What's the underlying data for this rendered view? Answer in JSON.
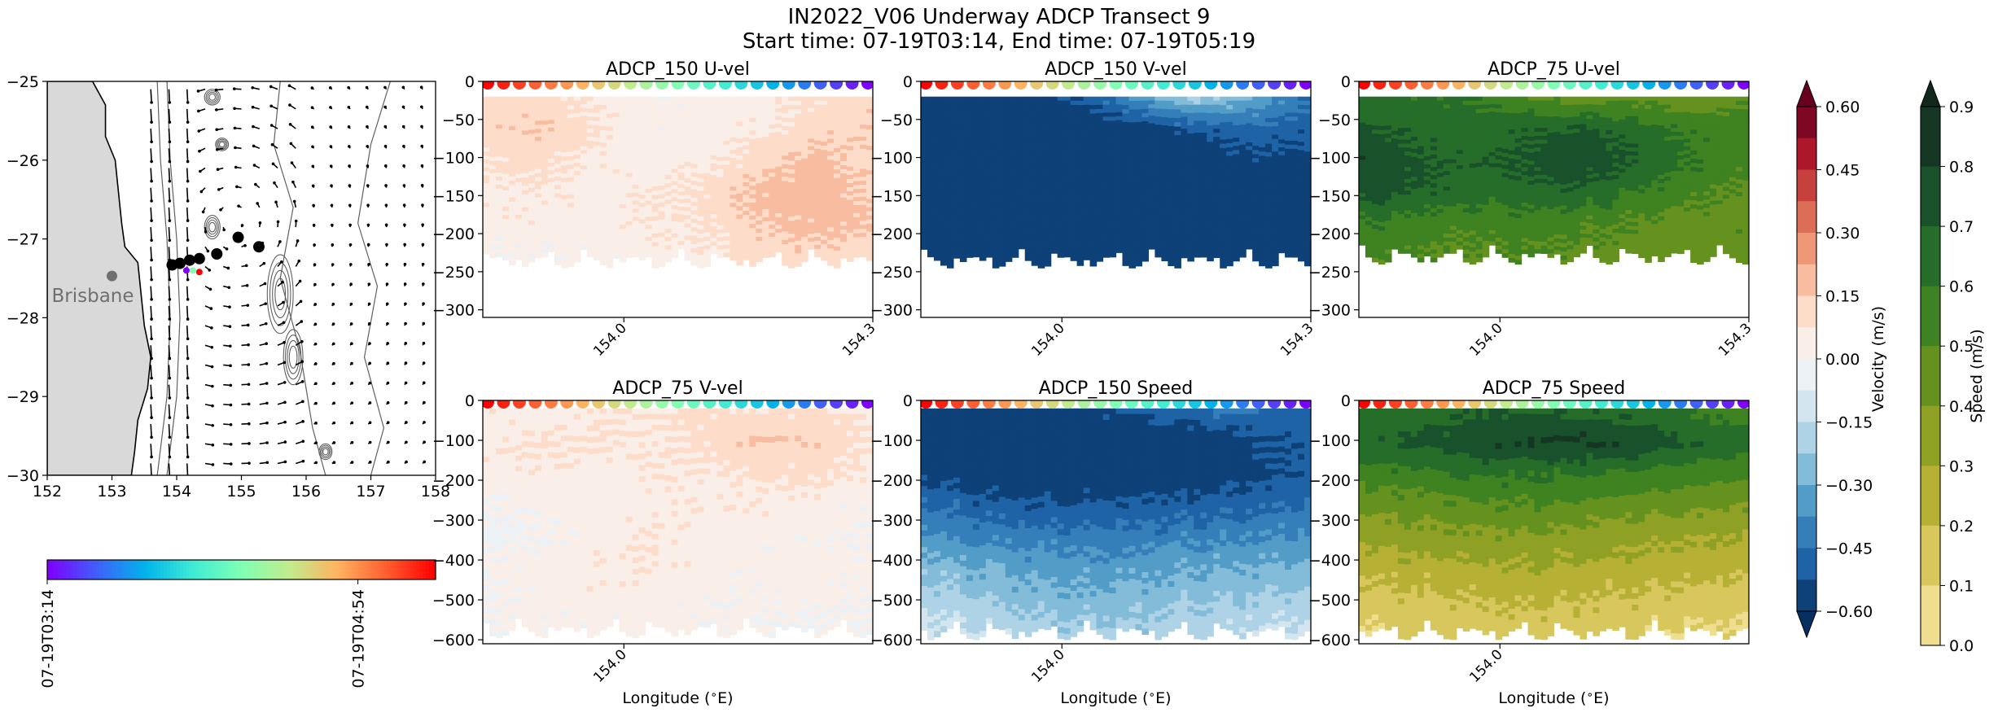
{
  "figure": {
    "title_line1": "IN2022_V06 Underway ADCP Transect 9",
    "title_line2": "Start time: 07-19T03:14, End time: 07-19T05:19"
  },
  "colors": {
    "land": "#d9d9d9",
    "coast": "#000000",
    "track_dot": "#000000",
    "city_marker": "#707070",
    "city_label": "#707070",
    "contour": "#606060"
  },
  "chart_data": [
    {
      "type": "scatter",
      "name": "map",
      "title": "",
      "xlim": [
        152,
        158
      ],
      "ylim": [
        -30,
        -25
      ],
      "xticks": [
        152,
        153,
        154,
        155,
        156,
        157,
        158
      ],
      "yticks": [
        -25,
        -26,
        -27,
        -28,
        -29,
        -30
      ],
      "xtick_labels": [
        "152",
        "153",
        "154",
        "155",
        "156",
        "157",
        "158"
      ],
      "ytick_labels": [
        "−25",
        "−26",
        "−27",
        "−28",
        "−29",
        "−30"
      ],
      "city": {
        "name": "Brisbane",
        "lon": 153.0,
        "lat": -27.47
      },
      "track_points": [
        {
          "lon": 153.93,
          "lat": -27.33
        },
        {
          "lon": 154.05,
          "lat": -27.31
        },
        {
          "lon": 154.2,
          "lat": -27.27
        },
        {
          "lon": 154.35,
          "lat": -27.25
        },
        {
          "lon": 154.62,
          "lat": -27.19
        },
        {
          "lon": 154.95,
          "lat": -26.98
        },
        {
          "lon": 155.27,
          "lat": -27.1
        }
      ],
      "colored_track": [
        {
          "lon": 154.15,
          "lat": -27.4
        },
        {
          "lon": 154.25,
          "lat": -27.4
        },
        {
          "lon": 154.35,
          "lat": -27.42
        }
      ],
      "grid": false
    },
    {
      "type": "colorbar",
      "name": "time-colorbar",
      "cmap": "rainbow",
      "orientation": "horizontal",
      "tick_labels": [
        "07-19T03:14",
        "07-19T04:54"
      ],
      "tick_positions": [
        0.0,
        0.8
      ]
    },
    {
      "type": "heatmap",
      "name": "adcp150-uvel",
      "title": "ADCP_150 U-vel",
      "variable": "velocity",
      "xlim": [
        153.83,
        154.3
      ],
      "ylim": [
        -310,
        0
      ],
      "xticks": [
        154.0,
        154.3
      ],
      "xtick_labels": [
        "154.0",
        "154.3"
      ],
      "yticks": [
        0,
        -50,
        -100,
        -150,
        -200,
        -250,
        -300
      ],
      "ytick_labels": [
        "0",
        "−50",
        "−100",
        "−150",
        "−200",
        "−250",
        "−300"
      ],
      "xlabel": "",
      "bottom_depth": -245,
      "field": [
        [
          0.1,
          0.12,
          0.06,
          0.02,
          0.03,
          0.05,
          0.08,
          0.12
        ],
        [
          0.12,
          0.15,
          0.08,
          0.02,
          0.04,
          0.06,
          0.12,
          0.14
        ],
        [
          0.08,
          0.1,
          0.05,
          0.04,
          0.06,
          0.12,
          0.18,
          0.13
        ],
        [
          0.06,
          0.07,
          0.04,
          0.06,
          0.1,
          0.18,
          0.2,
          0.14
        ],
        [
          0.04,
          0.05,
          0.04,
          0.06,
          0.08,
          0.14,
          0.18,
          0.16
        ],
        [
          0.02,
          0.0,
          0.02,
          0.04,
          0.06,
          0.1,
          0.12,
          0.1
        ]
      ]
    },
    {
      "type": "heatmap",
      "name": "adcp150-vvel",
      "title": "ADCP_150 V-vel",
      "variable": "velocity",
      "xlim": [
        153.83,
        154.3
      ],
      "ylim": [
        -310,
        0
      ],
      "xticks": [
        154.0,
        154.3
      ],
      "xtick_labels": [
        "154.0",
        "154.3"
      ],
      "yticks": [
        0,
        -50,
        -100,
        -150,
        -200,
        -250,
        -300
      ],
      "ytick_labels": [
        "0",
        "−50",
        "−100",
        "−150",
        "−200",
        "−250",
        "−300"
      ],
      "xlabel": "",
      "bottom_depth": -245,
      "field": [
        [
          -0.6,
          -0.6,
          -0.58,
          -0.5,
          -0.35,
          -0.2,
          -0.3,
          -0.45
        ],
        [
          -0.62,
          -0.62,
          -0.62,
          -0.62,
          -0.58,
          -0.52,
          -0.48,
          -0.5
        ],
        [
          -0.62,
          -0.62,
          -0.62,
          -0.62,
          -0.62,
          -0.6,
          -0.55,
          -0.55
        ],
        [
          -0.62,
          -0.62,
          -0.62,
          -0.62,
          -0.62,
          -0.62,
          -0.6,
          -0.58
        ],
        [
          -0.6,
          -0.62,
          -0.62,
          -0.62,
          -0.62,
          -0.62,
          -0.62,
          -0.6
        ],
        [
          -0.55,
          -0.58,
          -0.6,
          -0.6,
          -0.6,
          -0.6,
          -0.58,
          -0.55
        ]
      ]
    },
    {
      "type": "heatmap",
      "name": "adcp75-uvel",
      "title": "ADCP_75 U-vel",
      "variable": "speed",
      "xlim": [
        153.83,
        154.3
      ],
      "ylim": [
        -310,
        0
      ],
      "xticks": [
        154.0,
        154.3
      ],
      "xtick_labels": [
        "154.0",
        "154.3"
      ],
      "yticks": [
        0,
        -50,
        -100,
        -150,
        -200,
        -250,
        -300
      ],
      "ytick_labels": [
        "0",
        "−50",
        "−100",
        "−150",
        "−200",
        "−250",
        "−300"
      ],
      "xlabel": "",
      "bottom_depth": -240,
      "field": [
        [
          0.62,
          0.62,
          0.6,
          0.52,
          0.45,
          0.48,
          0.42,
          0.48
        ],
        [
          0.72,
          0.68,
          0.65,
          0.68,
          0.72,
          0.65,
          0.58,
          0.55
        ],
        [
          0.78,
          0.72,
          0.68,
          0.72,
          0.78,
          0.7,
          0.6,
          0.52
        ],
        [
          0.75,
          0.7,
          0.65,
          0.66,
          0.68,
          0.6,
          0.52,
          0.48
        ],
        [
          0.6,
          0.55,
          0.52,
          0.55,
          0.52,
          0.48,
          0.46,
          0.48
        ],
        [
          0.52,
          0.5,
          0.48,
          0.5,
          0.48,
          0.46,
          0.44,
          0.46
        ]
      ]
    },
    {
      "type": "heatmap",
      "name": "adcp75-vvel",
      "title": "ADCP_75 V-vel",
      "variable": "velocity",
      "xlim": [
        153.83,
        154.3
      ],
      "ylim": [
        -610,
        0
      ],
      "xticks": [
        154.0
      ],
      "xtick_labels": [
        "154.0"
      ],
      "yticks": [
        0,
        -100,
        -200,
        -300,
        -400,
        -500,
        -600
      ],
      "ytick_labels": [
        "0",
        "−100",
        "−200",
        "−300",
        "−400",
        "−500",
        "−600"
      ],
      "xlabel": "Longitude ($^\\circ$E)",
      "bottom_depth": -595,
      "field": [
        [
          0.05,
          0.04,
          0.06,
          0.08,
          0.1,
          0.08,
          0.1,
          0.05
        ],
        [
          0.06,
          0.08,
          0.08,
          0.06,
          0.1,
          0.16,
          0.14,
          0.08
        ],
        [
          0.04,
          0.06,
          0.04,
          0.06,
          0.06,
          0.08,
          0.1,
          0.06
        ],
        [
          0.0,
          0.02,
          0.04,
          0.05,
          0.06,
          0.06,
          0.04,
          0.02
        ],
        [
          -0.02,
          0.0,
          0.04,
          0.06,
          0.04,
          0.03,
          0.02,
          0.0
        ],
        [
          0.02,
          0.04,
          0.06,
          0.06,
          0.04,
          0.02,
          0.04,
          0.02
        ],
        [
          0.0,
          0.02,
          0.04,
          0.04,
          0.02,
          0.02,
          0.02,
          0.0
        ],
        [
          0.0,
          0.02,
          0.02,
          0.04,
          0.02,
          0.0,
          0.0,
          0.0
        ]
      ]
    },
    {
      "type": "heatmap",
      "name": "adcp150-speed",
      "title": "ADCP_150 Speed",
      "variable": "velocity",
      "xlim": [
        153.83,
        154.3
      ],
      "ylim": [
        -610,
        0
      ],
      "xticks": [
        154.0
      ],
      "xtick_labels": [
        "154.0"
      ],
      "yticks": [
        0,
        -100,
        -200,
        -300,
        -400,
        -500,
        -600
      ],
      "ytick_labels": [
        "0",
        "−100",
        "−200",
        "−300",
        "−400",
        "−500",
        "−600"
      ],
      "xlabel": "Longitude ($^\\circ$E)",
      "bottom_depth": -600,
      "field": [
        [
          -0.55,
          -0.58,
          -0.58,
          -0.55,
          -0.5,
          -0.45,
          -0.45,
          -0.5
        ],
        [
          -0.62,
          -0.62,
          -0.62,
          -0.62,
          -0.62,
          -0.6,
          -0.55,
          -0.5
        ],
        [
          -0.55,
          -0.58,
          -0.6,
          -0.6,
          -0.6,
          -0.58,
          -0.55,
          -0.5
        ],
        [
          -0.45,
          -0.5,
          -0.52,
          -0.52,
          -0.5,
          -0.5,
          -0.48,
          -0.45
        ],
        [
          -0.35,
          -0.4,
          -0.42,
          -0.42,
          -0.42,
          -0.4,
          -0.38,
          -0.36
        ],
        [
          -0.25,
          -0.3,
          -0.32,
          -0.35,
          -0.33,
          -0.3,
          -0.3,
          -0.28
        ],
        [
          -0.18,
          -0.22,
          -0.26,
          -0.28,
          -0.26,
          -0.24,
          -0.22,
          -0.2
        ],
        [
          -0.12,
          -0.15,
          -0.2,
          -0.2,
          -0.2,
          -0.18,
          -0.15,
          -0.12
        ]
      ]
    },
    {
      "type": "heatmap",
      "name": "adcp75-speed",
      "title": "ADCP_75 Speed",
      "variable": "speed",
      "xlim": [
        153.83,
        154.3
      ],
      "ylim": [
        -610,
        0
      ],
      "xticks": [
        154.0
      ],
      "xtick_labels": [
        "154.0"
      ],
      "yticks": [
        0,
        -100,
        -200,
        -300,
        -400,
        -500,
        -600
      ],
      "ytick_labels": [
        "0",
        "−100",
        "−200",
        "−300",
        "−400",
        "−500",
        "−600"
      ],
      "xlabel": "Longitude ($^\\circ$E)",
      "bottom_depth": -600,
      "field": [
        [
          0.62,
          0.65,
          0.68,
          0.7,
          0.68,
          0.65,
          0.6,
          0.55
        ],
        [
          0.68,
          0.72,
          0.78,
          0.8,
          0.82,
          0.78,
          0.7,
          0.65
        ],
        [
          0.55,
          0.58,
          0.62,
          0.62,
          0.6,
          0.58,
          0.55,
          0.52
        ],
        [
          0.42,
          0.46,
          0.48,
          0.5,
          0.48,
          0.45,
          0.42,
          0.4
        ],
        [
          0.32,
          0.36,
          0.38,
          0.38,
          0.36,
          0.34,
          0.32,
          0.3
        ],
        [
          0.24,
          0.26,
          0.28,
          0.3,
          0.28,
          0.26,
          0.24,
          0.22
        ],
        [
          0.16,
          0.18,
          0.2,
          0.22,
          0.2,
          0.18,
          0.16,
          0.14
        ],
        [
          0.1,
          0.12,
          0.14,
          0.16,
          0.14,
          0.12,
          0.1,
          0.08
        ]
      ]
    },
    {
      "type": "colorbar",
      "name": "velocity-colorbar",
      "cmap": "RdBu_r",
      "label": "Velocity (m/s)",
      "range": [
        -0.6,
        0.6
      ],
      "levels": 16,
      "extend": "both",
      "ticks": [
        0.6,
        0.45,
        0.3,
        0.15,
        0.0,
        -0.15,
        -0.3,
        -0.45,
        -0.6
      ],
      "tick_labels": [
        "0.60",
        "0.45",
        "0.30",
        "0.15",
        "0.00",
        "−0.15",
        "−0.30",
        "−0.45",
        "−0.60"
      ]
    },
    {
      "type": "colorbar",
      "name": "speed-colorbar",
      "cmap": "YlGn-dark",
      "label": "Speed (m/s)",
      "range": [
        0.0,
        0.9
      ],
      "levels": 9,
      "extend": "max",
      "ticks": [
        0.9,
        0.8,
        0.7,
        0.6,
        0.5,
        0.4,
        0.3,
        0.2,
        0.1,
        0.0
      ],
      "tick_labels": [
        "0.9",
        "0.8",
        "0.7",
        "0.6",
        "0.5",
        "0.4",
        "0.3",
        "0.2",
        "0.1",
        "0.0"
      ]
    }
  ]
}
